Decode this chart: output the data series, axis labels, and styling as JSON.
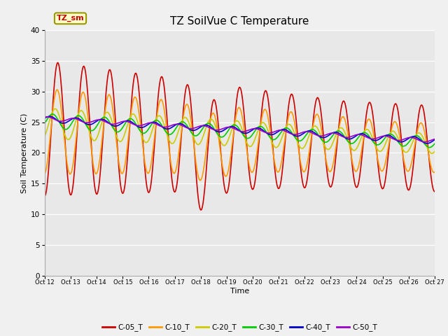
{
  "title": "TZ SoilVue C Temperature",
  "ylabel": "Soil Temperature (C)",
  "xlabel": "Time",
  "annotation": "TZ_sm",
  "ylim": [
    0,
    40
  ],
  "yticks": [
    0,
    5,
    10,
    15,
    20,
    25,
    30,
    35,
    40
  ],
  "xtick_labels": [
    "Oct 12",
    "Oct 13",
    "Oct 14",
    "Oct 15",
    "Oct 16",
    "Oct 17",
    "Oct 18",
    "Oct 19",
    "Oct 20",
    "Oct 21",
    "Oct 22",
    "Oct 23",
    "Oct 24",
    "Oct 25",
    "Oct 26",
    "Oct 27"
  ],
  "series": [
    {
      "name": "C-05_T",
      "color": "#cc0000",
      "linewidth": 1.2
    },
    {
      "name": "C-10_T",
      "color": "#ff9900",
      "linewidth": 1.2
    },
    {
      "name": "C-20_T",
      "color": "#cccc00",
      "linewidth": 1.2
    },
    {
      "name": "C-30_T",
      "color": "#00cc00",
      "linewidth": 1.2
    },
    {
      "name": "C-40_T",
      "color": "#0000cc",
      "linewidth": 1.2
    },
    {
      "name": "C-50_T",
      "color": "#9900cc",
      "linewidth": 1.2
    }
  ],
  "fig_bg_color": "#f0f0f0",
  "plot_bg_color": "#e8e8e8",
  "title_fontsize": 11,
  "axis_fontsize": 8,
  "tick_fontsize": 7.5
}
